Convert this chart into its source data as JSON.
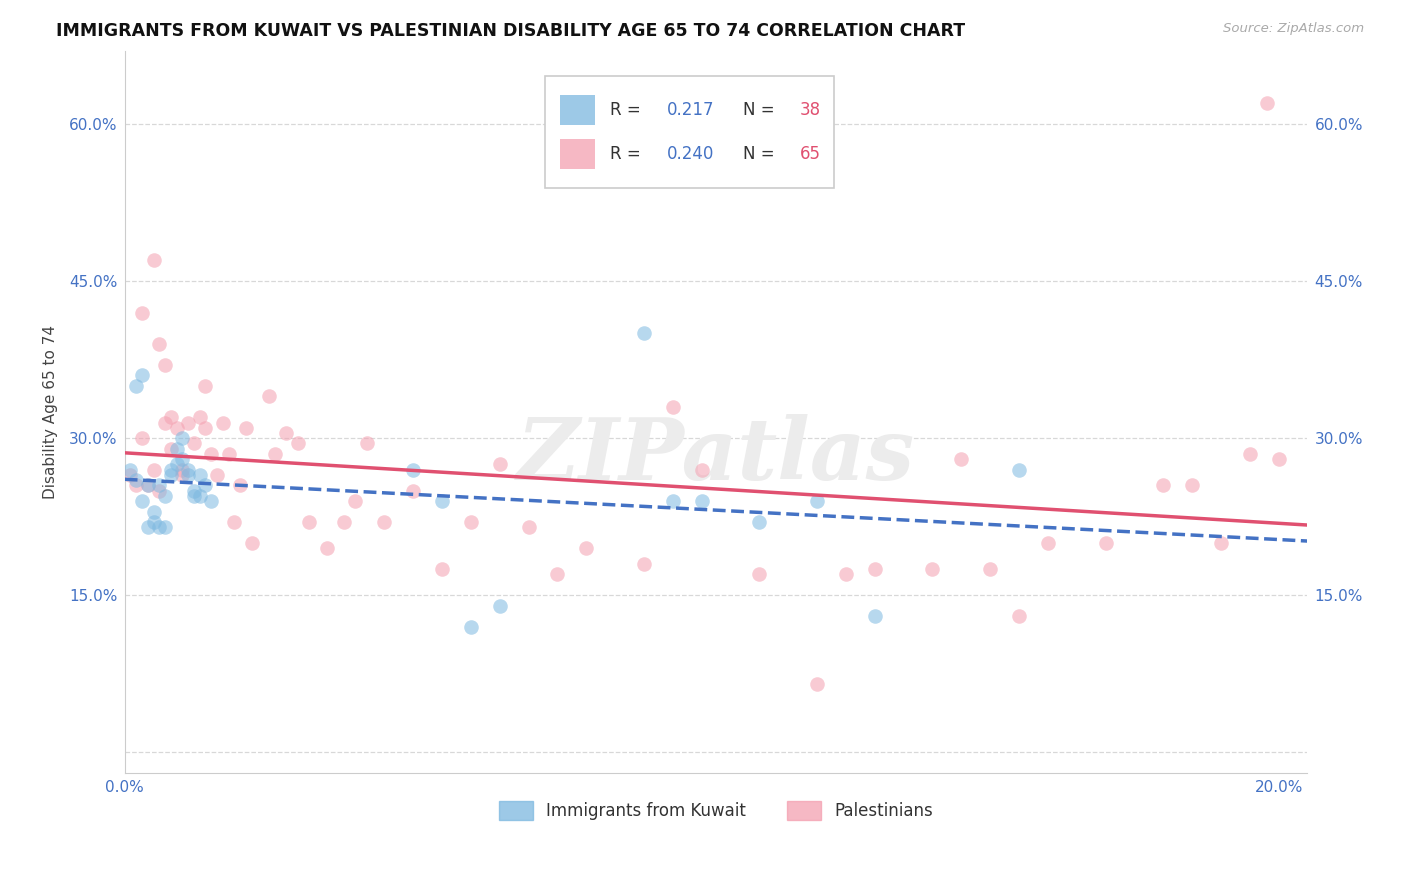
{
  "title": "IMMIGRANTS FROM KUWAIT VS PALESTINIAN DISABILITY AGE 65 TO 74 CORRELATION CHART",
  "source": "Source: ZipAtlas.com",
  "ylabel": "Disability Age 65 to 74",
  "xlim": [
    0.0,
    0.205
  ],
  "ylim": [
    -0.02,
    0.67
  ],
  "xticks": [
    0.0,
    0.04,
    0.08,
    0.12,
    0.16,
    0.2
  ],
  "xticklabels": [
    "0.0%",
    "",
    "",
    "",
    "",
    "20.0%"
  ],
  "yticks": [
    0.0,
    0.15,
    0.3,
    0.45,
    0.6
  ],
  "yticklabels": [
    "",
    "15.0%",
    "30.0%",
    "45.0%",
    "60.0%"
  ],
  "kuwait_color": "#7db8e0",
  "palestinian_color": "#f4a0b0",
  "trend_kuwait_color": "#4472c4",
  "trend_palestinian_color": "#e05070",
  "kuwait_R": 0.217,
  "kuwait_N": 38,
  "palestinian_R": 0.24,
  "palestinian_N": 65,
  "legend_label_kuwait": "Immigrants from Kuwait",
  "legend_label_palestinian": "Palestinians",
  "watermark": "ZIPatlas",
  "background_color": "#ffffff",
  "grid_color": "#d8d8d8",
  "marker_size": 110,
  "marker_alpha": 0.55,
  "kuwait_x": [
    0.001,
    0.002,
    0.003,
    0.004,
    0.005,
    0.006,
    0.007,
    0.008,
    0.009,
    0.01,
    0.011,
    0.012,
    0.013,
    0.014,
    0.015,
    0.002,
    0.003,
    0.004,
    0.005,
    0.006,
    0.007,
    0.008,
    0.009,
    0.01,
    0.011,
    0.012,
    0.013,
    0.05,
    0.055,
    0.06,
    0.065,
    0.09,
    0.095,
    0.1,
    0.11,
    0.12,
    0.13,
    0.155
  ],
  "kuwait_y": [
    0.27,
    0.26,
    0.24,
    0.255,
    0.22,
    0.255,
    0.245,
    0.27,
    0.29,
    0.3,
    0.265,
    0.25,
    0.245,
    0.255,
    0.24,
    0.35,
    0.36,
    0.215,
    0.23,
    0.215,
    0.215,
    0.265,
    0.275,
    0.28,
    0.27,
    0.245,
    0.265,
    0.27,
    0.24,
    0.12,
    0.14,
    0.4,
    0.24,
    0.24,
    0.22,
    0.24,
    0.13,
    0.27
  ],
  "palestinian_x": [
    0.001,
    0.002,
    0.003,
    0.003,
    0.004,
    0.005,
    0.005,
    0.006,
    0.006,
    0.007,
    0.007,
    0.008,
    0.008,
    0.009,
    0.01,
    0.01,
    0.011,
    0.012,
    0.013,
    0.014,
    0.014,
    0.015,
    0.016,
    0.017,
    0.018,
    0.019,
    0.02,
    0.021,
    0.022,
    0.025,
    0.026,
    0.028,
    0.03,
    0.032,
    0.035,
    0.038,
    0.04,
    0.042,
    0.045,
    0.05,
    0.055,
    0.06,
    0.065,
    0.07,
    0.075,
    0.08,
    0.09,
    0.095,
    0.1,
    0.11,
    0.12,
    0.125,
    0.13,
    0.14,
    0.145,
    0.15,
    0.155,
    0.16,
    0.17,
    0.18,
    0.185,
    0.19,
    0.195,
    0.198,
    0.2
  ],
  "palestinian_y": [
    0.265,
    0.255,
    0.42,
    0.3,
    0.255,
    0.27,
    0.47,
    0.25,
    0.39,
    0.315,
    0.37,
    0.29,
    0.32,
    0.31,
    0.27,
    0.265,
    0.315,
    0.295,
    0.32,
    0.31,
    0.35,
    0.285,
    0.265,
    0.315,
    0.285,
    0.22,
    0.255,
    0.31,
    0.2,
    0.34,
    0.285,
    0.305,
    0.295,
    0.22,
    0.195,
    0.22,
    0.24,
    0.295,
    0.22,
    0.25,
    0.175,
    0.22,
    0.275,
    0.215,
    0.17,
    0.195,
    0.18,
    0.33,
    0.27,
    0.17,
    0.065,
    0.17,
    0.175,
    0.175,
    0.28,
    0.175,
    0.13,
    0.2,
    0.2,
    0.255,
    0.255,
    0.2,
    0.285,
    0.62,
    0.28
  ]
}
